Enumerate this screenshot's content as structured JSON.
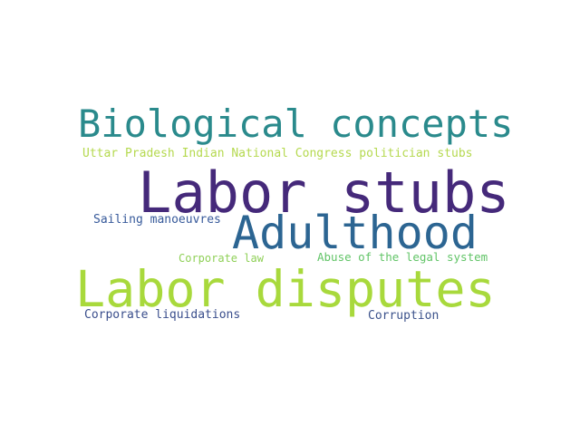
{
  "words": {
    "biological_concepts": {
      "text": "Biological concepts",
      "color": "#2a8a8c"
    },
    "uttar_pradesh": {
      "text": "Uttar Pradesh Indian National Congress politician stubs",
      "color": "#b5d94f"
    },
    "labor_stubs": {
      "text": "Labor stubs",
      "color": "#45297a"
    },
    "sailing": {
      "text": "Sailing manoeuvres",
      "color": "#36599a"
    },
    "adulthood": {
      "text": "Adulthood",
      "color": "#2c6592"
    },
    "corporate_law": {
      "text": "Corporate law",
      "color": "#8fd057"
    },
    "abuse": {
      "text": "Abuse of the legal system",
      "color": "#61c467"
    },
    "labor_disputes": {
      "text": "Labor disputes",
      "color": "#a8d93c"
    },
    "corporate_liquidations": {
      "text": "Corporate liquidations",
      "color": "#3a4e8c"
    },
    "corruption": {
      "text": "Corruption",
      "color": "#3b528b"
    }
  }
}
